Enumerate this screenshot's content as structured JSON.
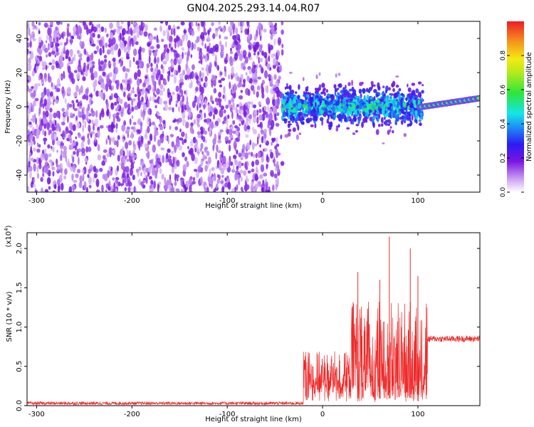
{
  "title": "GN04.2025.293.14.04.R07",
  "colorbar": {
    "label": "Normalized spectral amplitude",
    "ticks": [
      "0.0",
      "0.2",
      "0.4",
      "0.6",
      "0.8"
    ],
    "tick_values": [
      0.0,
      0.2,
      0.4,
      0.6,
      0.8
    ],
    "range": [
      0,
      1
    ]
  },
  "chart_data": [
    {
      "type": "heatmap",
      "name": "spectrogram",
      "xlabel": "Height of straight line (km)",
      "ylabel": "Frequency (Hz)",
      "xlim": [
        -310,
        165
      ],
      "ylim": [
        -50,
        50
      ],
      "xticks": [
        -300,
        -200,
        -100,
        0,
        100
      ],
      "xtick_labels": [
        "-300",
        "-200",
        "-100",
        "0",
        "100"
      ],
      "yticks": [
        -40,
        -20,
        0,
        20,
        40
      ],
      "ytick_labels": [
        "-40",
        "-20",
        "0",
        "20",
        "40"
      ],
      "colormap": "rainbow (white -> purple -> blue -> cyan -> green -> yellow -> red)",
      "regions": [
        {
          "x_range": [
            -310,
            -42
          ],
          "description": "uniform low-amplitude noise across all frequencies",
          "amplitude": [
            0.0,
            0.15
          ]
        },
        {
          "x_range": [
            -42,
            105
          ],
          "freq_center": 0,
          "freq_halfwidth": [
            5,
            25
          ],
          "amplitude": [
            0.2,
            0.5
          ]
        },
        {
          "x_range": [
            105,
            165
          ],
          "freq_center_start": 0,
          "freq_center_end": 5,
          "amplitude": [
            0.6,
            1.0
          ]
        }
      ]
    },
    {
      "type": "line",
      "name": "snr",
      "xlabel": "Height of straight line (km)",
      "ylabel": "SNR (10 * v/v)",
      "y_multiplier": "(x10⁴)",
      "multiplier_base": "(x10",
      "multiplier_exp": "4",
      "multiplier_close": ")",
      "xlim": [
        -310,
        165
      ],
      "ylim": [
        0,
        2.2
      ],
      "xticks": [
        -300,
        -200,
        -100,
        0,
        100
      ],
      "xtick_labels": [
        "-300",
        "-200",
        "-100",
        "0",
        "100"
      ],
      "yticks": [
        0.0,
        0.5,
        1.0,
        1.5,
        2.0
      ],
      "ytick_labels": [
        "0.0",
        "0.5",
        "1.0",
        "1.5",
        "2.0"
      ],
      "color": "#ee2a2a",
      "segments": [
        {
          "x_range": [
            -310,
            -20
          ],
          "baseline": 0.03,
          "noise": 0.04
        },
        {
          "x_range": [
            -20,
            30
          ],
          "baseline": 0.3,
          "noise": 0.6
        },
        {
          "x_range": [
            30,
            110
          ],
          "baseline": 0.5,
          "noise": 1.3
        },
        {
          "x_range": [
            110,
            165
          ],
          "baseline": 0.85,
          "noise": 0.08
        }
      ],
      "peaks": [
        {
          "x": 70,
          "y": 2.15
        },
        {
          "x": 92,
          "y": 2.0
        },
        {
          "x": 37,
          "y": 1.7
        },
        {
          "x": 60,
          "y": 1.6
        },
        {
          "x": 100,
          "y": 1.65
        }
      ]
    }
  ]
}
